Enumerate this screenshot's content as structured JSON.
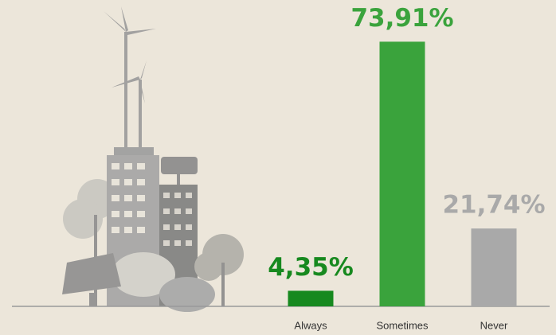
{
  "chart_data": {
    "type": "bar",
    "categories": [
      "Always",
      "Sometimes",
      "Never"
    ],
    "values": [
      4.35,
      73.91,
      21.74
    ],
    "value_labels": [
      "4,35%",
      "73,91%",
      "21,74%"
    ],
    "colors": [
      "#17891f",
      "#3aa33c",
      "#a9a9a9"
    ]
  }
}
